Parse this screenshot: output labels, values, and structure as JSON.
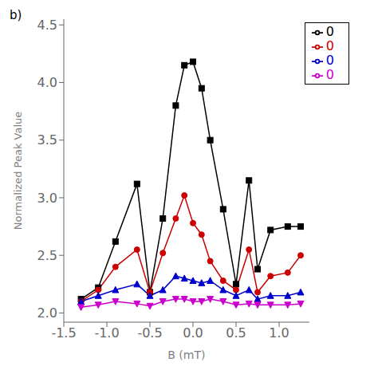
{
  "chart_data": {
    "type": "line",
    "xlabel": "B (mT)",
    "ylabel": "Normalized Peak Value",
    "annotations": [
      "b)"
    ],
    "xlim": [
      -1.5,
      1.35
    ],
    "ylim": [
      1.92,
      4.55
    ],
    "xticks": [
      -1.5,
      {
        "value": -1,
        "label": "-1.0"
      },
      -0.5,
      {
        "value": 0,
        "label": "0.0"
      },
      0.5,
      {
        "value": 1,
        "label": "1.0"
      }
    ],
    "yticks": [
      {
        "value": 2,
        "label": "2.0"
      },
      2.5,
      {
        "value": 3,
        "label": "3.0"
      },
      3.5,
      {
        "value": 4,
        "label": "4.0"
      },
      4.5
    ],
    "legend": "upper right",
    "grid": false,
    "x": [
      -1.3,
      -1.1,
      -0.9,
      -0.65,
      -0.5,
      -0.35,
      -0.2,
      -0.1,
      0.0,
      0.1,
      0.2,
      0.35,
      0.5,
      0.65,
      0.75,
      0.9,
      1.1,
      1.25
    ],
    "series": [
      {
        "name": "0",
        "color": "#000000",
        "marker": "square",
        "values": [
          2.12,
          2.22,
          2.62,
          3.12,
          2.18,
          2.82,
          3.8,
          4.15,
          4.18,
          3.95,
          3.5,
          2.9,
          2.25,
          3.15,
          2.38,
          2.72,
          2.75,
          2.75
        ]
      },
      {
        "name": "0",
        "color": "#cc0000",
        "marker": "circle",
        "values": [
          2.1,
          2.2,
          2.4,
          2.55,
          2.18,
          2.52,
          2.82,
          3.02,
          2.78,
          2.68,
          2.45,
          2.28,
          2.2,
          2.55,
          2.18,
          2.32,
          2.35,
          2.5
        ]
      },
      {
        "name": "0",
        "color": "#0000cc",
        "marker": "triangle-up",
        "values": [
          2.1,
          2.15,
          2.2,
          2.25,
          2.15,
          2.2,
          2.32,
          2.3,
          2.28,
          2.26,
          2.28,
          2.2,
          2.15,
          2.2,
          2.12,
          2.15,
          2.15,
          2.18
        ]
      },
      {
        "name": "0",
        "color": "#cc00cc",
        "marker": "triangle-down",
        "values": [
          2.05,
          2.07,
          2.1,
          2.08,
          2.06,
          2.1,
          2.12,
          2.12,
          2.1,
          2.1,
          2.12,
          2.1,
          2.07,
          2.08,
          2.07,
          2.07,
          2.07,
          2.08
        ]
      }
    ]
  }
}
